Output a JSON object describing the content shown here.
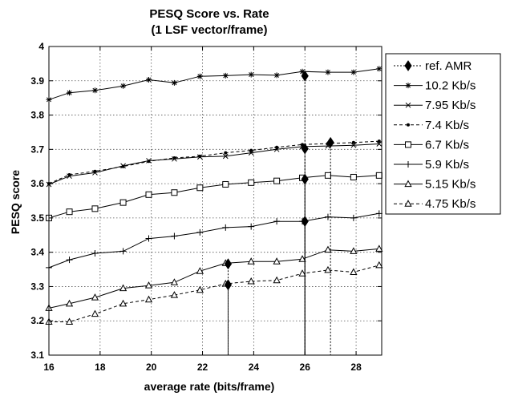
{
  "chart_data": {
    "type": "line",
    "title": "PESQ Score vs. Rate",
    "subtitle": "(1 LSF vector/frame)",
    "xlabel": "average rate (bits/frame)",
    "ylabel": "PESQ score",
    "xlim": [
      16,
      29
    ],
    "ylim": [
      3.1,
      4.0
    ],
    "xticks": [
      "16",
      "18",
      "20",
      "22",
      "24",
      "26",
      "28"
    ],
    "yticks": [
      "3.1",
      "3.2",
      "3.3",
      "3.4",
      "3.5",
      "3.6",
      "3.7",
      "3.8",
      "3.9",
      "4"
    ],
    "grid": true,
    "legend_position": "right",
    "x": [
      16,
      16.8,
      17.8,
      18.9,
      19.9,
      20.9,
      21.9,
      22.9,
      23.9,
      24.9,
      25.9,
      26.9,
      27.9,
      28.9
    ],
    "series": [
      {
        "name": "10.2 Kb/s",
        "marker": "star",
        "dash": "solid",
        "values": [
          3.845,
          3.865,
          3.872,
          3.885,
          3.903,
          3.894,
          3.913,
          3.915,
          3.918,
          3.916,
          3.927,
          3.925,
          3.925,
          3.935
        ]
      },
      {
        "name": "7.95 Kb/s",
        "marker": "x",
        "dash": "solid",
        "values": [
          3.598,
          3.622,
          3.632,
          3.652,
          3.667,
          3.672,
          3.678,
          3.68,
          3.69,
          3.7,
          3.708,
          3.71,
          3.712,
          3.716
        ]
      },
      {
        "name": "7.4 Kb/s",
        "marker": "dot",
        "dash": "dashed",
        "values": [
          3.6,
          3.626,
          3.636,
          3.65,
          3.665,
          3.675,
          3.68,
          3.69,
          3.697,
          3.706,
          3.714,
          3.717,
          3.72,
          3.724
        ]
      },
      {
        "name": "6.7 Kb/s",
        "marker": "square",
        "dash": "solid",
        "values": [
          3.5,
          3.518,
          3.527,
          3.545,
          3.568,
          3.574,
          3.588,
          3.598,
          3.603,
          3.608,
          3.617,
          3.624,
          3.619,
          3.624
        ]
      },
      {
        "name": "5.9 Kb/s",
        "marker": "plus",
        "dash": "solid",
        "values": [
          3.355,
          3.378,
          3.397,
          3.403,
          3.44,
          3.447,
          3.458,
          3.472,
          3.475,
          3.49,
          3.49,
          3.503,
          3.5,
          3.513
        ]
      },
      {
        "name": "5.15 Kb/s",
        "marker": "triangle",
        "dash": "solid",
        "values": [
          3.237,
          3.25,
          3.268,
          3.295,
          3.303,
          3.312,
          3.345,
          3.368,
          3.373,
          3.373,
          3.38,
          3.407,
          3.403,
          3.41
        ]
      },
      {
        "name": "4.75 Kb/s",
        "marker": "triangle",
        "dash": "dashed",
        "values": [
          3.197,
          3.197,
          3.22,
          3.25,
          3.262,
          3.275,
          3.29,
          3.308,
          3.315,
          3.318,
          3.338,
          3.348,
          3.342,
          3.362
        ]
      }
    ],
    "reference": {
      "name": "ref. AMR",
      "marker": "diamond",
      "dash": "dotted",
      "points": [
        {
          "x": 26,
          "y": 3.914
        },
        {
          "x": 26,
          "y": 3.702
        },
        {
          "x": 27,
          "y": 3.72
        },
        {
          "x": 26,
          "y": 3.613
        },
        {
          "x": 26,
          "y": 3.49
        },
        {
          "x": 23,
          "y": 3.366
        },
        {
          "x": 23,
          "y": 3.305
        }
      ]
    }
  }
}
